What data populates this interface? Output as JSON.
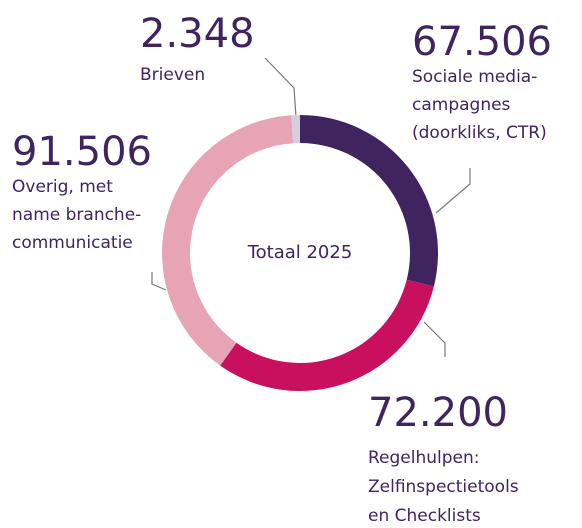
{
  "chart_data": {
    "type": "pie",
    "donut": true,
    "center_label": "Totaal 2025",
    "categories": [
      [
        "Sociale media-",
        "campagnes",
        "(doorkliks, CTR)"
      ],
      [
        "Regelhulpen:",
        "Zelfinspectietools",
        "en Checklists"
      ],
      [
        "Overig, met",
        "name branche-",
        "communicatie"
      ],
      [
        "Brieven"
      ]
    ],
    "values": [
      67506,
      72200,
      91506,
      2348
    ],
    "value_labels": [
      "67.506",
      "72.200",
      "91.506",
      "2.348"
    ],
    "colors": [
      "#3f2460",
      "#c8105f",
      "#e6a4b4",
      "#d8cde0"
    ]
  }
}
